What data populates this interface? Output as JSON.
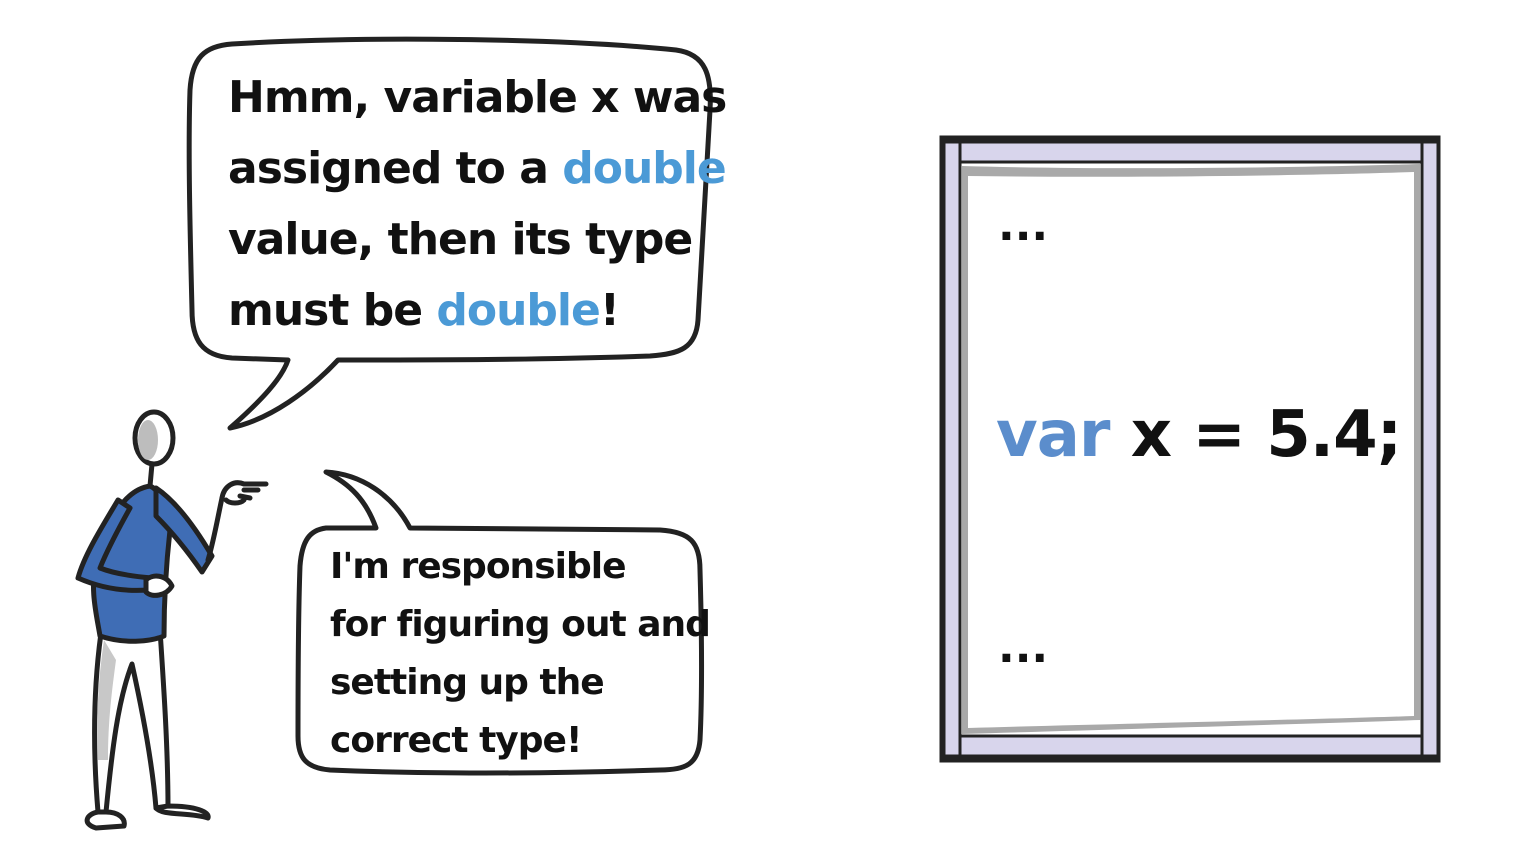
{
  "speech_bubble_top": {
    "line1": "Hmm, variable x was",
    "line2_prefix": "assigned to a ",
    "line2_highlight": "double",
    "line3": "value, then its type",
    "line4_prefix": "must be ",
    "line4_highlight": "double",
    "line4_suffix": "!"
  },
  "speech_bubble_bottom": {
    "line1": "I'm responsible",
    "line2": "for figuring out and",
    "line3": "setting up the",
    "line4": "correct type!"
  },
  "code_panel": {
    "ellipsis_top": "...",
    "keyword": "var",
    "statement": " x = 5.4;",
    "ellipsis_bottom": "..."
  },
  "colors": {
    "highlight": "#4b9ad6",
    "keyword": "#5b8dcc",
    "shirt": "#3f6db5",
    "frame_rail": "#d8d5ec",
    "outline": "#222222"
  },
  "icons": {
    "figure": "stick-figure-pointing",
    "bubbles": "speech-bubble"
  }
}
